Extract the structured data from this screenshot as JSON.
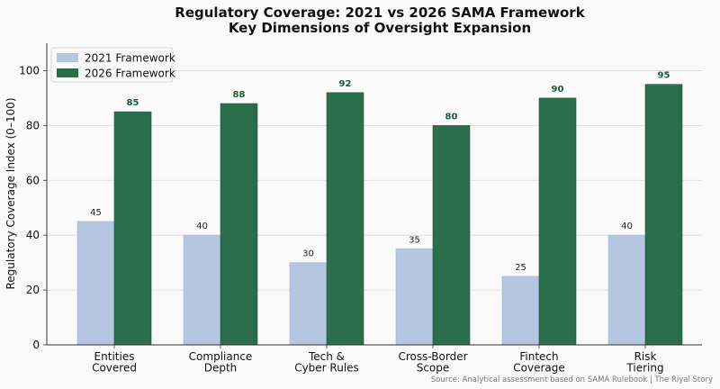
{
  "chart_data": {
    "type": "bar",
    "title": "Regulatory Coverage: 2021 vs 2026 SAMA Framework",
    "subtitle": "Key Dimensions of Oversight Expansion",
    "xlabel": "",
    "ylabel": "Regulatory Coverage Index (0–100)",
    "ylim": [
      0,
      110
    ],
    "yticks": [
      "0",
      "20",
      "40",
      "60",
      "80",
      "100"
    ],
    "grid": true,
    "legend_position": "top-left",
    "categories": [
      [
        "Entities",
        "Covered"
      ],
      [
        "Compliance",
        "Depth"
      ],
      [
        "Tech &",
        "Cyber Rules"
      ],
      [
        "Cross-Border",
        "Scope"
      ],
      [
        "Fintech",
        "Coverage"
      ],
      [
        "Risk",
        "Tiering"
      ]
    ],
    "series": [
      {
        "name": "2021 Framework",
        "color": "#b4c6e0",
        "values": [
          45,
          40,
          30,
          35,
          25,
          40
        ]
      },
      {
        "name": "2026 Framework",
        "color": "#2a6e4c",
        "values": [
          85,
          88,
          92,
          80,
          90,
          95
        ]
      }
    ],
    "source": "Source: Analytical assessment based on SAMA Rulebook | The Riyal Story"
  }
}
